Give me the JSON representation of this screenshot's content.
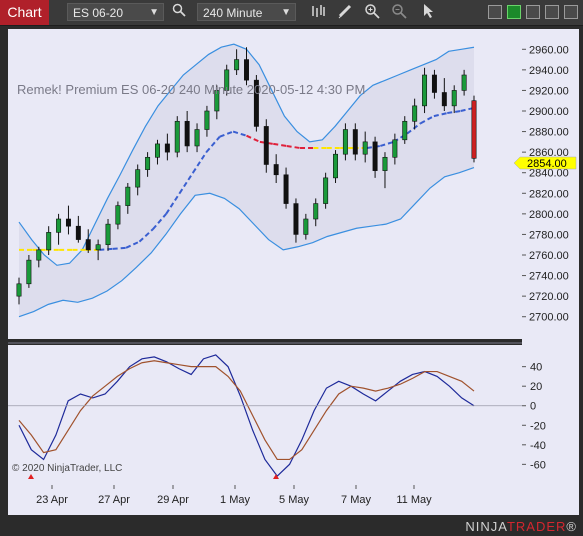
{
  "toolbar": {
    "chart_tab": "Chart",
    "instrument": "ES 06-20",
    "interval": "240 Minute",
    "icons": [
      "search-icon",
      "bar-style-icon",
      "draw-pencil-icon",
      "zoom-in-icon",
      "zoom-out-icon",
      "pointer-icon"
    ],
    "window_icons": [
      "restore-icon",
      "maximize-green-icon",
      "minimize-icon",
      "maximize-icon",
      "close-icon"
    ]
  },
  "chart": {
    "label": "Remek!  Premium  ES 06-20  240 Minute  2020-05-12 4:30 PM",
    "copyright": "© 2020 NinjaTrader, LLC",
    "price_axis": [
      "2960.00",
      "2940.00",
      "2920.00",
      "2900.00",
      "2880.00",
      "2860.00",
      "2840.00",
      "2820.00",
      "2800.00",
      "2780.00",
      "2760.00",
      "2740.00",
      "2720.00",
      "2700.00"
    ],
    "last_price": "2854.00",
    "osc_axis": [
      "40",
      "20",
      "0",
      "-20",
      "-40",
      "-60"
    ],
    "date_labels": [
      "23 Apr",
      "27 Apr",
      "29 Apr",
      "1 May",
      "5 May",
      "7 May",
      "11 May"
    ],
    "colors": {
      "background": "#e9e9f6",
      "bands": "#3a8fe0",
      "midline": "#3a5fd0",
      "flat_yellow": "#ffe600",
      "flat_red": "#e0203a",
      "osc_fast": "#1e2a9a",
      "osc_slow": "#a0522d",
      "last_price_tag": "#ffff00"
    }
  },
  "chart_data": {
    "type": "candlestick",
    "price_ylim": [
      2690,
      2970
    ],
    "osc_ylim": [
      -75,
      55
    ],
    "candles": [
      {
        "o": 2720,
        "h": 2738,
        "l": 2712,
        "c": 2732
      },
      {
        "o": 2732,
        "h": 2760,
        "l": 2728,
        "c": 2755
      },
      {
        "o": 2755,
        "h": 2768,
        "l": 2748,
        "c": 2765
      },
      {
        "o": 2765,
        "h": 2788,
        "l": 2760,
        "c": 2782
      },
      {
        "o": 2782,
        "h": 2800,
        "l": 2770,
        "c": 2795
      },
      {
        "o": 2795,
        "h": 2808,
        "l": 2780,
        "c": 2788
      },
      {
        "o": 2788,
        "h": 2798,
        "l": 2772,
        "c": 2775
      },
      {
        "o": 2775,
        "h": 2785,
        "l": 2762,
        "c": 2765
      },
      {
        "o": 2765,
        "h": 2775,
        "l": 2755,
        "c": 2770
      },
      {
        "o": 2770,
        "h": 2795,
        "l": 2764,
        "c": 2790
      },
      {
        "o": 2790,
        "h": 2812,
        "l": 2785,
        "c": 2808
      },
      {
        "o": 2808,
        "h": 2830,
        "l": 2800,
        "c": 2826
      },
      {
        "o": 2826,
        "h": 2848,
        "l": 2818,
        "c": 2843
      },
      {
        "o": 2843,
        "h": 2860,
        "l": 2836,
        "c": 2855
      },
      {
        "o": 2855,
        "h": 2872,
        "l": 2848,
        "c": 2868
      },
      {
        "o": 2868,
        "h": 2878,
        "l": 2852,
        "c": 2860
      },
      {
        "o": 2860,
        "h": 2895,
        "l": 2855,
        "c": 2890
      },
      {
        "o": 2890,
        "h": 2900,
        "l": 2860,
        "c": 2866
      },
      {
        "o": 2866,
        "h": 2888,
        "l": 2860,
        "c": 2882
      },
      {
        "o": 2882,
        "h": 2905,
        "l": 2875,
        "c": 2900
      },
      {
        "o": 2900,
        "h": 2925,
        "l": 2892,
        "c": 2920
      },
      {
        "o": 2920,
        "h": 2945,
        "l": 2915,
        "c": 2940
      },
      {
        "o": 2940,
        "h": 2960,
        "l": 2935,
        "c": 2950
      },
      {
        "o": 2950,
        "h": 2962,
        "l": 2925,
        "c": 2930
      },
      {
        "o": 2930,
        "h": 2935,
        "l": 2880,
        "c": 2885
      },
      {
        "o": 2885,
        "h": 2892,
        "l": 2840,
        "c": 2848
      },
      {
        "o": 2848,
        "h": 2858,
        "l": 2830,
        "c": 2838
      },
      {
        "o": 2838,
        "h": 2845,
        "l": 2805,
        "c": 2810
      },
      {
        "o": 2810,
        "h": 2815,
        "l": 2772,
        "c": 2780
      },
      {
        "o": 2780,
        "h": 2800,
        "l": 2775,
        "c": 2795
      },
      {
        "o": 2795,
        "h": 2815,
        "l": 2788,
        "c": 2810
      },
      {
        "o": 2810,
        "h": 2840,
        "l": 2805,
        "c": 2835
      },
      {
        "o": 2835,
        "h": 2862,
        "l": 2830,
        "c": 2858
      },
      {
        "o": 2858,
        "h": 2888,
        "l": 2852,
        "c": 2882
      },
      {
        "o": 2882,
        "h": 2888,
        "l": 2852,
        "c": 2858
      },
      {
        "o": 2858,
        "h": 2880,
        "l": 2850,
        "c": 2870
      },
      {
        "o": 2870,
        "h": 2875,
        "l": 2835,
        "c": 2842
      },
      {
        "o": 2842,
        "h": 2860,
        "l": 2825,
        "c": 2855
      },
      {
        "o": 2855,
        "h": 2878,
        "l": 2848,
        "c": 2872
      },
      {
        "o": 2872,
        "h": 2895,
        "l": 2868,
        "c": 2890
      },
      {
        "o": 2890,
        "h": 2912,
        "l": 2882,
        "c": 2905
      },
      {
        "o": 2905,
        "h": 2942,
        "l": 2898,
        "c": 2935
      },
      {
        "o": 2935,
        "h": 2940,
        "l": 2912,
        "c": 2918
      },
      {
        "o": 2918,
        "h": 2932,
        "l": 2900,
        "c": 2905
      },
      {
        "o": 2905,
        "h": 2925,
        "l": 2898,
        "c": 2920
      },
      {
        "o": 2920,
        "h": 2940,
        "l": 2915,
        "c": 2935
      },
      {
        "o": 2910,
        "h": 2915,
        "l": 2850,
        "c": 2854
      }
    ],
    "upper_band": [
      2792,
      2775,
      2760,
      2750,
      2752,
      2765,
      2790,
      2815,
      2838,
      2862,
      2885,
      2905,
      2920,
      2935,
      2945,
      2955,
      2962,
      2965,
      2960,
      2945,
      2920,
      2895,
      2880,
      2870,
      2872,
      2885,
      2900,
      2915,
      2925,
      2930,
      2935,
      2940,
      2945,
      2950,
      2958,
      2960,
      2962
    ],
    "lower_band": [
      2700,
      2705,
      2712,
      2716,
      2714,
      2718,
      2725,
      2735,
      2748,
      2762,
      2780,
      2800,
      2818,
      2820,
      2815,
      2805,
      2790,
      2775,
      2765,
      2768,
      2772,
      2778,
      2782,
      2786,
      2788,
      2790,
      2795,
      2810,
      2825,
      2836,
      2840,
      2845
    ],
    "midline": [
      2765,
      2765,
      2765,
      2765,
      2765,
      2765,
      2765,
      2766,
      2767,
      2773,
      2785,
      2800,
      2820,
      2840,
      2860,
      2875,
      2880,
      2876,
      2870,
      2868,
      2866,
      2864,
      2864,
      2864,
      2864,
      2864,
      2864,
      2866,
      2870,
      2878,
      2888,
      2895,
      2898,
      2900,
      2903
    ],
    "osc_fast": [
      -20,
      -45,
      -55,
      -30,
      5,
      12,
      8,
      12,
      25,
      40,
      48,
      50,
      45,
      38,
      32,
      48,
      52,
      40,
      10,
      -25,
      -55,
      -72,
      -60,
      -35,
      -5,
      18,
      25,
      20,
      12,
      5,
      15,
      25,
      32,
      35,
      30,
      20,
      8,
      0
    ],
    "osc_slow": [
      -15,
      -30,
      -48,
      -45,
      -25,
      -5,
      10,
      20,
      30,
      38,
      44,
      46,
      44,
      42,
      40,
      40,
      40,
      30,
      15,
      -10,
      -35,
      -55,
      -55,
      -45,
      -25,
      -5,
      12,
      20,
      18,
      15,
      18,
      22,
      28,
      35,
      35,
      30,
      25,
      15
    ]
  }
}
